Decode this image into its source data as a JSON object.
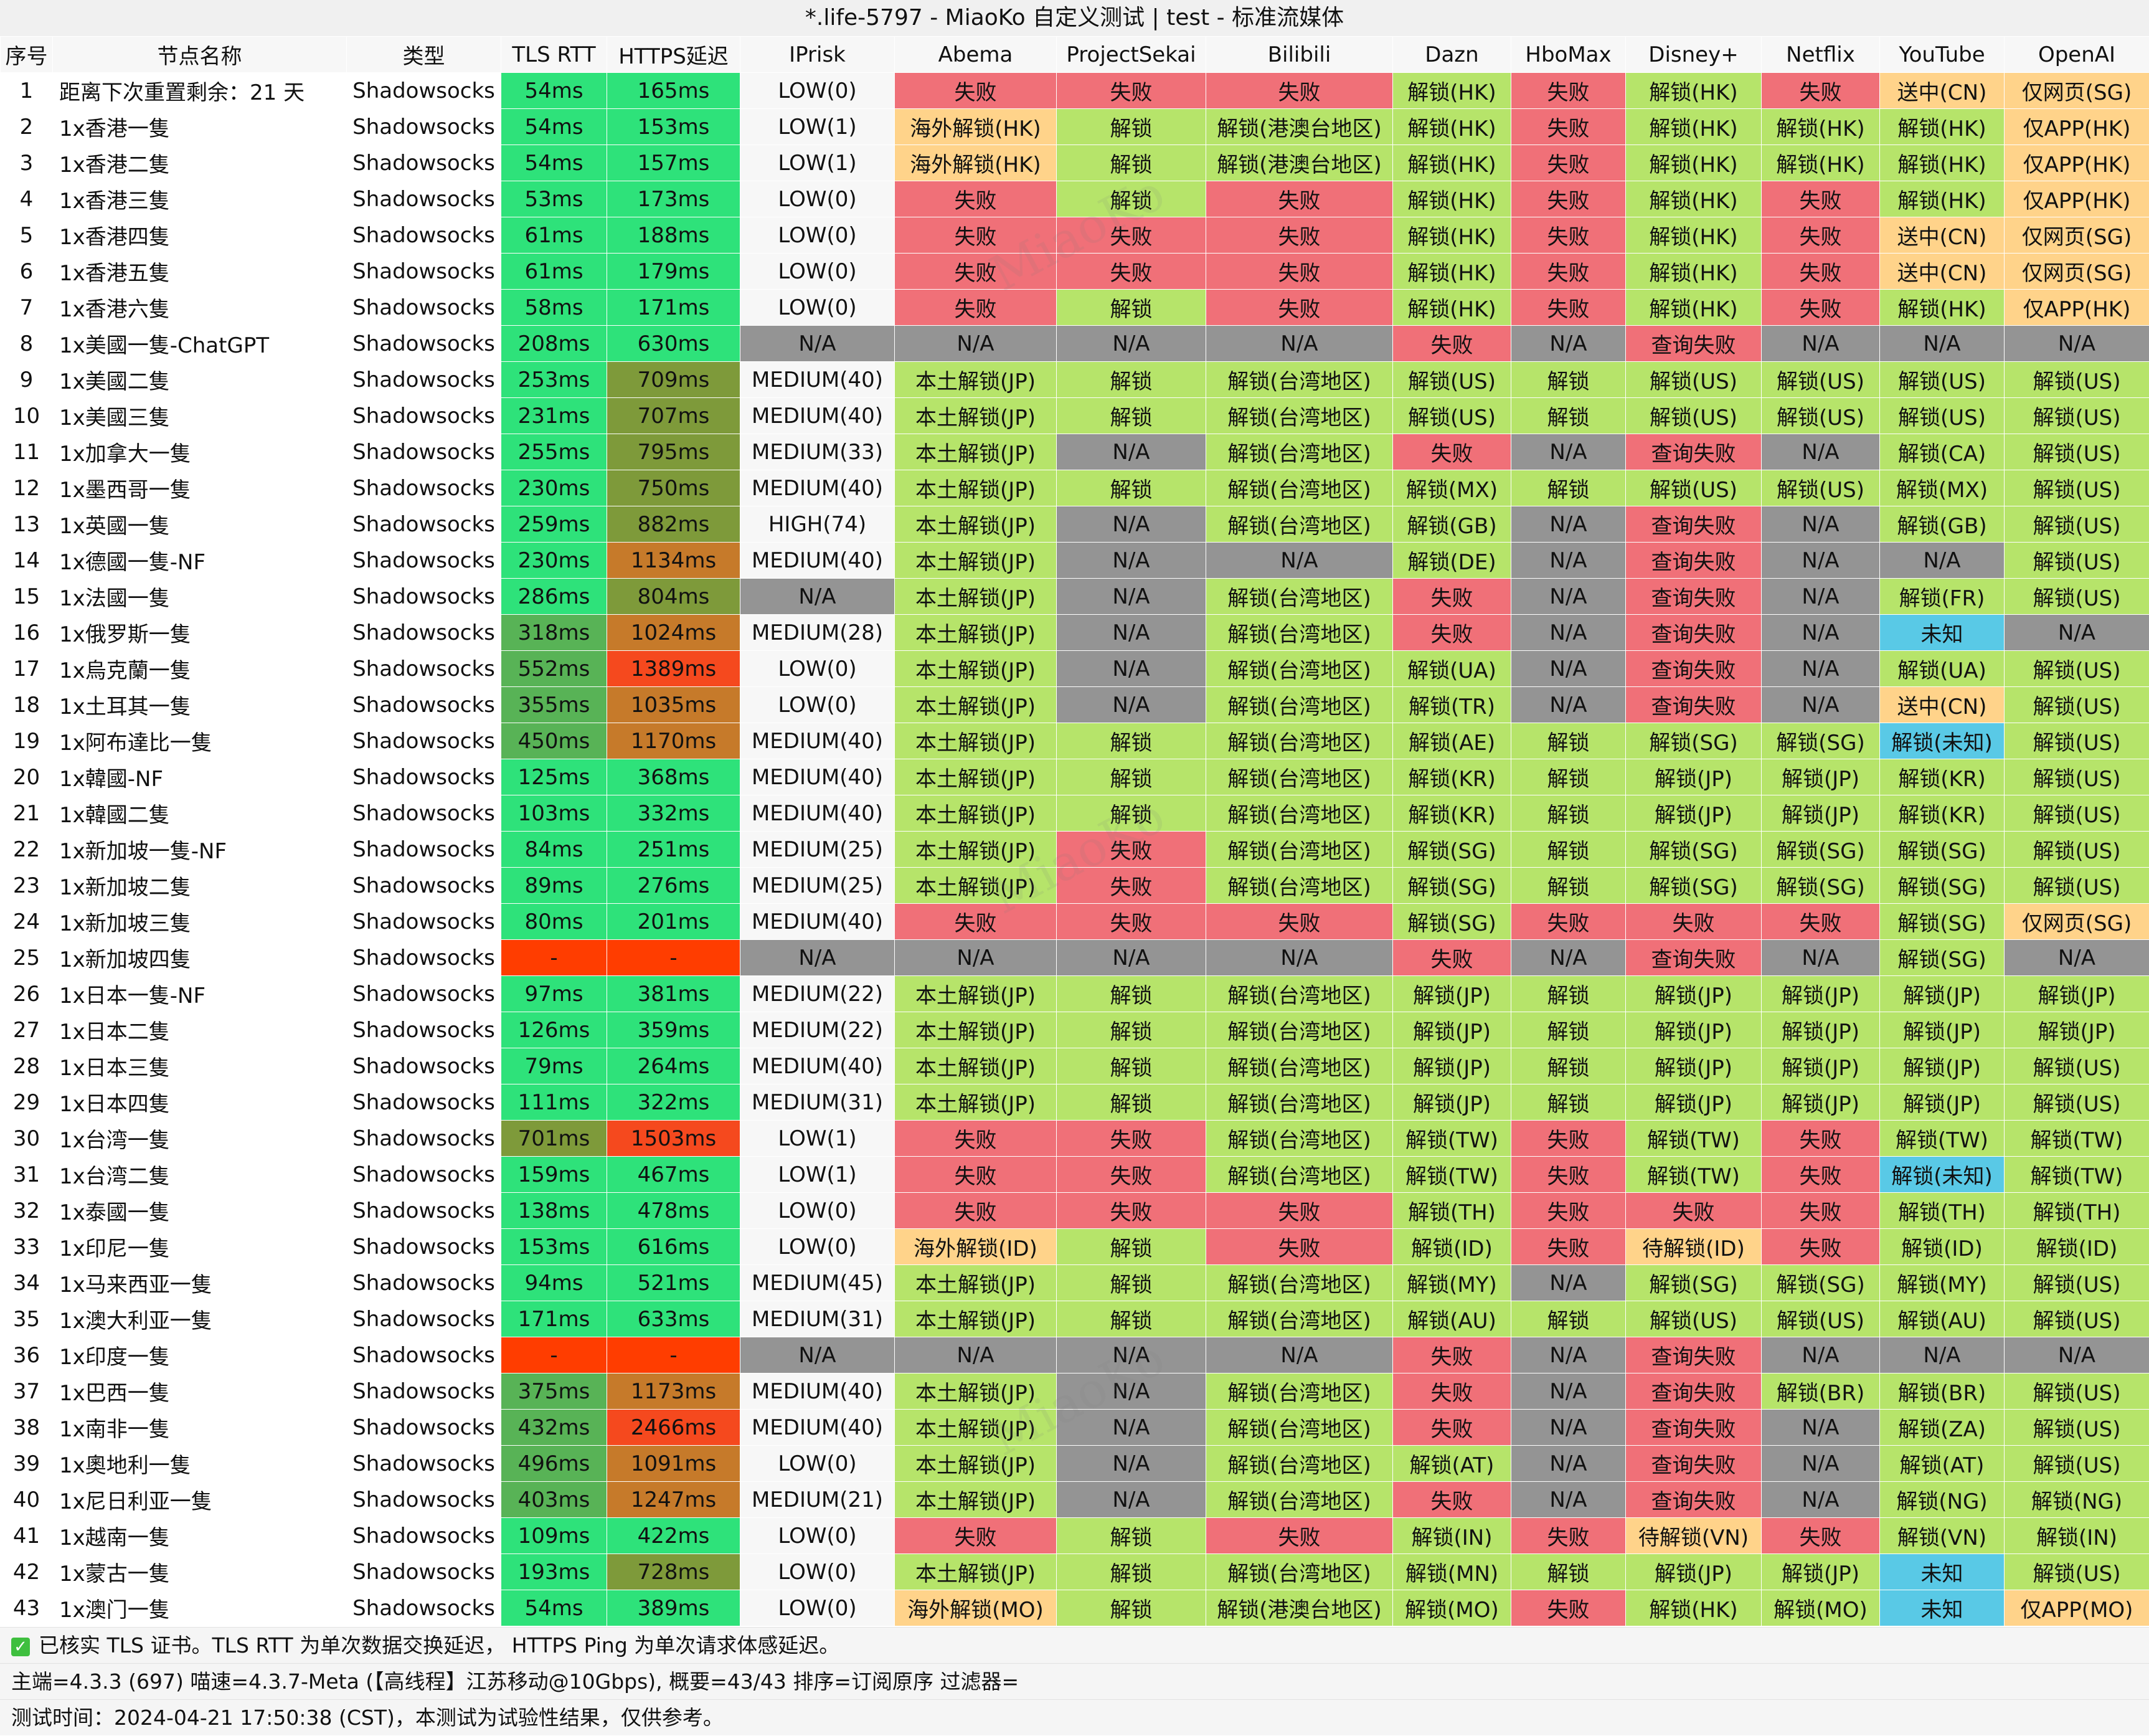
{
  "window_title": "*.life-5797 - MiaoKo 自定义测试 | test - 标准流媒体",
  "watermark": "MiaoKo",
  "headers": [
    "序号",
    "节点名称",
    "类型",
    "TLS RTT",
    "HTTPS延迟",
    "IPrisk",
    "Abema",
    "ProjectSekai",
    "Bilibili",
    "Dazn",
    "HboMax",
    "Disney+",
    "Netflix",
    "YouTube",
    "OpenAI"
  ],
  "colors": {
    "fail": "#f07078",
    "unlock": "#b6e46a",
    "overseas": "#ffd38a",
    "na": "#949494",
    "unknown": "#59c9e6",
    "fast": "#2ee27a",
    "mid": "#58b356",
    "slow1": "#7e9a3a",
    "slow2": "#c67a2a",
    "slow3": "#f5491e",
    "none": "#ff3d00",
    "white": "#ffffff"
  },
  "rows": [
    [
      "1",
      "距离下次重置剩余：21 天",
      "Shadowsocks",
      "54ms",
      "165ms",
      "LOW(0)",
      "失败",
      "失败",
      "失败",
      "解锁(HK)",
      "失败",
      "解锁(HK)",
      "失败",
      "送中(CN)",
      "仅网页(SG)"
    ],
    [
      "2",
      "1x香港一隻",
      "Shadowsocks",
      "54ms",
      "153ms",
      "LOW(1)",
      "海外解锁(HK)",
      "解锁",
      "解锁(港澳台地区)",
      "解锁(HK)",
      "失败",
      "解锁(HK)",
      "解锁(HK)",
      "解锁(HK)",
      "仅APP(HK)"
    ],
    [
      "3",
      "1x香港二隻",
      "Shadowsocks",
      "54ms",
      "157ms",
      "LOW(1)",
      "海外解锁(HK)",
      "解锁",
      "解锁(港澳台地区)",
      "解锁(HK)",
      "失败",
      "解锁(HK)",
      "解锁(HK)",
      "解锁(HK)",
      "仅APP(HK)"
    ],
    [
      "4",
      "1x香港三隻",
      "Shadowsocks",
      "53ms",
      "173ms",
      "LOW(0)",
      "失败",
      "解锁",
      "失败",
      "解锁(HK)",
      "失败",
      "解锁(HK)",
      "失败",
      "解锁(HK)",
      "仅APP(HK)"
    ],
    [
      "5",
      "1x香港四隻",
      "Shadowsocks",
      "61ms",
      "188ms",
      "LOW(0)",
      "失败",
      "失败",
      "失败",
      "解锁(HK)",
      "失败",
      "解锁(HK)",
      "失败",
      "送中(CN)",
      "仅网页(SG)"
    ],
    [
      "6",
      "1x香港五隻",
      "Shadowsocks",
      "61ms",
      "179ms",
      "LOW(0)",
      "失败",
      "失败",
      "失败",
      "解锁(HK)",
      "失败",
      "解锁(HK)",
      "失败",
      "送中(CN)",
      "仅网页(SG)"
    ],
    [
      "7",
      "1x香港六隻",
      "Shadowsocks",
      "58ms",
      "171ms",
      "LOW(0)",
      "失败",
      "解锁",
      "失败",
      "解锁(HK)",
      "失败",
      "解锁(HK)",
      "失败",
      "解锁(HK)",
      "仅APP(HK)"
    ],
    [
      "8",
      "1x美國一隻-ChatGPT",
      "Shadowsocks",
      "208ms",
      "630ms",
      "N/A",
      "N/A",
      "N/A",
      "N/A",
      "失败",
      "N/A",
      "查询失败",
      "N/A",
      "N/A",
      "N/A"
    ],
    [
      "9",
      "1x美國二隻",
      "Shadowsocks",
      "253ms",
      "709ms",
      "MEDIUM(40)",
      "本土解锁(JP)",
      "解锁",
      "解锁(台湾地区)",
      "解锁(US)",
      "解锁",
      "解锁(US)",
      "解锁(US)",
      "解锁(US)",
      "解锁(US)"
    ],
    [
      "10",
      "1x美國三隻",
      "Shadowsocks",
      "231ms",
      "707ms",
      "MEDIUM(40)",
      "本土解锁(JP)",
      "解锁",
      "解锁(台湾地区)",
      "解锁(US)",
      "解锁",
      "解锁(US)",
      "解锁(US)",
      "解锁(US)",
      "解锁(US)"
    ],
    [
      "11",
      "1x加拿大一隻",
      "Shadowsocks",
      "255ms",
      "795ms",
      "MEDIUM(33)",
      "本土解锁(JP)",
      "N/A",
      "解锁(台湾地区)",
      "失败",
      "N/A",
      "查询失败",
      "N/A",
      "解锁(CA)",
      "解锁(US)"
    ],
    [
      "12",
      "1x墨西哥一隻",
      "Shadowsocks",
      "230ms",
      "750ms",
      "MEDIUM(40)",
      "本土解锁(JP)",
      "解锁",
      "解锁(台湾地区)",
      "解锁(MX)",
      "解锁",
      "解锁(US)",
      "解锁(US)",
      "解锁(MX)",
      "解锁(US)"
    ],
    [
      "13",
      "1x英國一隻",
      "Shadowsocks",
      "259ms",
      "882ms",
      "HIGH(74)",
      "本土解锁(JP)",
      "N/A",
      "解锁(台湾地区)",
      "解锁(GB)",
      "N/A",
      "查询失败",
      "N/A",
      "解锁(GB)",
      "解锁(US)"
    ],
    [
      "14",
      "1x德國一隻-NF",
      "Shadowsocks",
      "230ms",
      "1134ms",
      "MEDIUM(40)",
      "本土解锁(JP)",
      "N/A",
      "N/A",
      "解锁(DE)",
      "N/A",
      "查询失败",
      "N/A",
      "N/A",
      "解锁(US)"
    ],
    [
      "15",
      "1x法國一隻",
      "Shadowsocks",
      "286ms",
      "804ms",
      "N/A",
      "本土解锁(JP)",
      "N/A",
      "解锁(台湾地区)",
      "失败",
      "N/A",
      "查询失败",
      "N/A",
      "解锁(FR)",
      "解锁(US)"
    ],
    [
      "16",
      "1x俄罗斯一隻",
      "Shadowsocks",
      "318ms",
      "1024ms",
      "MEDIUM(28)",
      "本土解锁(JP)",
      "N/A",
      "解锁(台湾地区)",
      "失败",
      "N/A",
      "查询失败",
      "N/A",
      "未知",
      "N/A"
    ],
    [
      "17",
      "1x烏克蘭一隻",
      "Shadowsocks",
      "552ms",
      "1389ms",
      "LOW(0)",
      "本土解锁(JP)",
      "N/A",
      "解锁(台湾地区)",
      "解锁(UA)",
      "N/A",
      "查询失败",
      "N/A",
      "解锁(UA)",
      "解锁(US)"
    ],
    [
      "18",
      "1x土耳其一隻",
      "Shadowsocks",
      "355ms",
      "1035ms",
      "LOW(0)",
      "本土解锁(JP)",
      "N/A",
      "解锁(台湾地区)",
      "解锁(TR)",
      "N/A",
      "查询失败",
      "N/A",
      "送中(CN)",
      "解锁(US)"
    ],
    [
      "19",
      "1x阿布達比一隻",
      "Shadowsocks",
      "450ms",
      "1170ms",
      "MEDIUM(40)",
      "本土解锁(JP)",
      "解锁",
      "解锁(台湾地区)",
      "解锁(AE)",
      "解锁",
      "解锁(SG)",
      "解锁(SG)",
      "解锁(未知)",
      "解锁(US)"
    ],
    [
      "20",
      "1x韓國-NF",
      "Shadowsocks",
      "125ms",
      "368ms",
      "MEDIUM(40)",
      "本土解锁(JP)",
      "解锁",
      "解锁(台湾地区)",
      "解锁(KR)",
      "解锁",
      "解锁(JP)",
      "解锁(JP)",
      "解锁(KR)",
      "解锁(US)"
    ],
    [
      "21",
      "1x韓國二隻",
      "Shadowsocks",
      "103ms",
      "332ms",
      "MEDIUM(40)",
      "本土解锁(JP)",
      "解锁",
      "解锁(台湾地区)",
      "解锁(KR)",
      "解锁",
      "解锁(JP)",
      "解锁(JP)",
      "解锁(KR)",
      "解锁(US)"
    ],
    [
      "22",
      "1x新加坡一隻-NF",
      "Shadowsocks",
      "84ms",
      "251ms",
      "MEDIUM(25)",
      "本土解锁(JP)",
      "失败",
      "解锁(台湾地区)",
      "解锁(SG)",
      "解锁",
      "解锁(SG)",
      "解锁(SG)",
      "解锁(SG)",
      "解锁(US)"
    ],
    [
      "23",
      "1x新加坡二隻",
      "Shadowsocks",
      "89ms",
      "276ms",
      "MEDIUM(25)",
      "本土解锁(JP)",
      "失败",
      "解锁(台湾地区)",
      "解锁(SG)",
      "解锁",
      "解锁(SG)",
      "解锁(SG)",
      "解锁(SG)",
      "解锁(US)"
    ],
    [
      "24",
      "1x新加坡三隻",
      "Shadowsocks",
      "80ms",
      "201ms",
      "MEDIUM(40)",
      "失败",
      "失败",
      "失败",
      "解锁(SG)",
      "失败",
      "失败",
      "失败",
      "解锁(SG)",
      "仅网页(SG)"
    ],
    [
      "25",
      "1x新加坡四隻",
      "Shadowsocks",
      "-",
      "-",
      "N/A",
      "N/A",
      "N/A",
      "N/A",
      "失败",
      "N/A",
      "查询失败",
      "N/A",
      "解锁(SG)",
      "N/A"
    ],
    [
      "26",
      "1x日本一隻-NF",
      "Shadowsocks",
      "97ms",
      "381ms",
      "MEDIUM(22)",
      "本土解锁(JP)",
      "解锁",
      "解锁(台湾地区)",
      "解锁(JP)",
      "解锁",
      "解锁(JP)",
      "解锁(JP)",
      "解锁(JP)",
      "解锁(JP)"
    ],
    [
      "27",
      "1x日本二隻",
      "Shadowsocks",
      "126ms",
      "359ms",
      "MEDIUM(22)",
      "本土解锁(JP)",
      "解锁",
      "解锁(台湾地区)",
      "解锁(JP)",
      "解锁",
      "解锁(JP)",
      "解锁(JP)",
      "解锁(JP)",
      "解锁(JP)"
    ],
    [
      "28",
      "1x日本三隻",
      "Shadowsocks",
      "79ms",
      "264ms",
      "MEDIUM(40)",
      "本土解锁(JP)",
      "解锁",
      "解锁(台湾地区)",
      "解锁(JP)",
      "解锁",
      "解锁(JP)",
      "解锁(JP)",
      "解锁(JP)",
      "解锁(US)"
    ],
    [
      "29",
      "1x日本四隻",
      "Shadowsocks",
      "111ms",
      "322ms",
      "MEDIUM(31)",
      "本土解锁(JP)",
      "解锁",
      "解锁(台湾地区)",
      "解锁(JP)",
      "解锁",
      "解锁(JP)",
      "解锁(JP)",
      "解锁(JP)",
      "解锁(US)"
    ],
    [
      "30",
      "1x台湾一隻",
      "Shadowsocks",
      "701ms",
      "1503ms",
      "LOW(1)",
      "失败",
      "失败",
      "解锁(台湾地区)",
      "解锁(TW)",
      "失败",
      "解锁(TW)",
      "失败",
      "解锁(TW)",
      "解锁(TW)"
    ],
    [
      "31",
      "1x台湾二隻",
      "Shadowsocks",
      "159ms",
      "467ms",
      "LOW(1)",
      "失败",
      "失败",
      "解锁(台湾地区)",
      "解锁(TW)",
      "失败",
      "解锁(TW)",
      "失败",
      "解锁(未知)",
      "解锁(TW)"
    ],
    [
      "32",
      "1x泰國一隻",
      "Shadowsocks",
      "138ms",
      "478ms",
      "LOW(0)",
      "失败",
      "失败",
      "失败",
      "解锁(TH)",
      "失败",
      "失败",
      "失败",
      "解锁(TH)",
      "解锁(TH)"
    ],
    [
      "33",
      "1x印尼一隻",
      "Shadowsocks",
      "153ms",
      "616ms",
      "LOW(0)",
      "海外解锁(ID)",
      "解锁",
      "失败",
      "解锁(ID)",
      "失败",
      "待解锁(ID)",
      "失败",
      "解锁(ID)",
      "解锁(ID)"
    ],
    [
      "34",
      "1x马来西亚一隻",
      "Shadowsocks",
      "94ms",
      "521ms",
      "MEDIUM(45)",
      "本土解锁(JP)",
      "解锁",
      "解锁(台湾地区)",
      "解锁(MY)",
      "N/A",
      "解锁(SG)",
      "解锁(SG)",
      "解锁(MY)",
      "解锁(US)"
    ],
    [
      "35",
      "1x澳大利亚一隻",
      "Shadowsocks",
      "171ms",
      "633ms",
      "MEDIUM(31)",
      "本土解锁(JP)",
      "解锁",
      "解锁(台湾地区)",
      "解锁(AU)",
      "解锁",
      "解锁(US)",
      "解锁(US)",
      "解锁(AU)",
      "解锁(US)"
    ],
    [
      "36",
      "1x印度一隻",
      "Shadowsocks",
      "-",
      "-",
      "N/A",
      "N/A",
      "N/A",
      "N/A",
      "失败",
      "N/A",
      "查询失败",
      "N/A",
      "N/A",
      "N/A"
    ],
    [
      "37",
      "1x巴西一隻",
      "Shadowsocks",
      "375ms",
      "1173ms",
      "MEDIUM(40)",
      "本土解锁(JP)",
      "N/A",
      "解锁(台湾地区)",
      "失败",
      "N/A",
      "查询失败",
      "解锁(BR)",
      "解锁(BR)",
      "解锁(US)"
    ],
    [
      "38",
      "1x南非一隻",
      "Shadowsocks",
      "432ms",
      "2466ms",
      "MEDIUM(40)",
      "本土解锁(JP)",
      "N/A",
      "解锁(台湾地区)",
      "失败",
      "N/A",
      "查询失败",
      "N/A",
      "解锁(ZA)",
      "解锁(US)"
    ],
    [
      "39",
      "1x奧地利一隻",
      "Shadowsocks",
      "496ms",
      "1091ms",
      "LOW(0)",
      "本土解锁(JP)",
      "N/A",
      "解锁(台湾地区)",
      "解锁(AT)",
      "N/A",
      "查询失败",
      "N/A",
      "解锁(AT)",
      "解锁(US)"
    ],
    [
      "40",
      "1x尼日利亚一隻",
      "Shadowsocks",
      "403ms",
      "1247ms",
      "MEDIUM(21)",
      "本土解锁(JP)",
      "N/A",
      "解锁(台湾地区)",
      "失败",
      "N/A",
      "查询失败",
      "N/A",
      "解锁(NG)",
      "解锁(NG)"
    ],
    [
      "41",
      "1x越南一隻",
      "Shadowsocks",
      "109ms",
      "422ms",
      "LOW(0)",
      "失败",
      "解锁",
      "失败",
      "解锁(IN)",
      "失败",
      "待解锁(VN)",
      "失败",
      "解锁(VN)",
      "解锁(IN)"
    ],
    [
      "42",
      "1x蒙古一隻",
      "Shadowsocks",
      "193ms",
      "728ms",
      "LOW(0)",
      "本土解锁(JP)",
      "解锁",
      "解锁(台湾地区)",
      "解锁(MN)",
      "解锁",
      "解锁(JP)",
      "解锁(JP)",
      "未知",
      "解锁(US)"
    ],
    [
      "43",
      "1x澳门一隻",
      "Shadowsocks",
      "54ms",
      "389ms",
      "LOW(0)",
      "海外解锁(MO)",
      "解锁",
      "解锁(港澳台地区)",
      "解锁(MO)",
      "失败",
      "解锁(HK)",
      "解锁(MO)",
      "未知",
      "仅APP(MO)"
    ]
  ],
  "footer": {
    "tls_note": "已核实 TLS 证书。TLS RTT 为单次数据交换延迟， HTTPS Ping 为单次请求体感延迟。",
    "meta": "主端=4.3.3 (697) 喵速=4.3.7-Meta (【高线程】江苏移动@10Gbps), 概要=43/43 排序=订阅原序 过滤器=",
    "time": "测试时间：2024-04-21 17:50:38 (CST)，本测试为试验性结果，仅供参考。"
  }
}
